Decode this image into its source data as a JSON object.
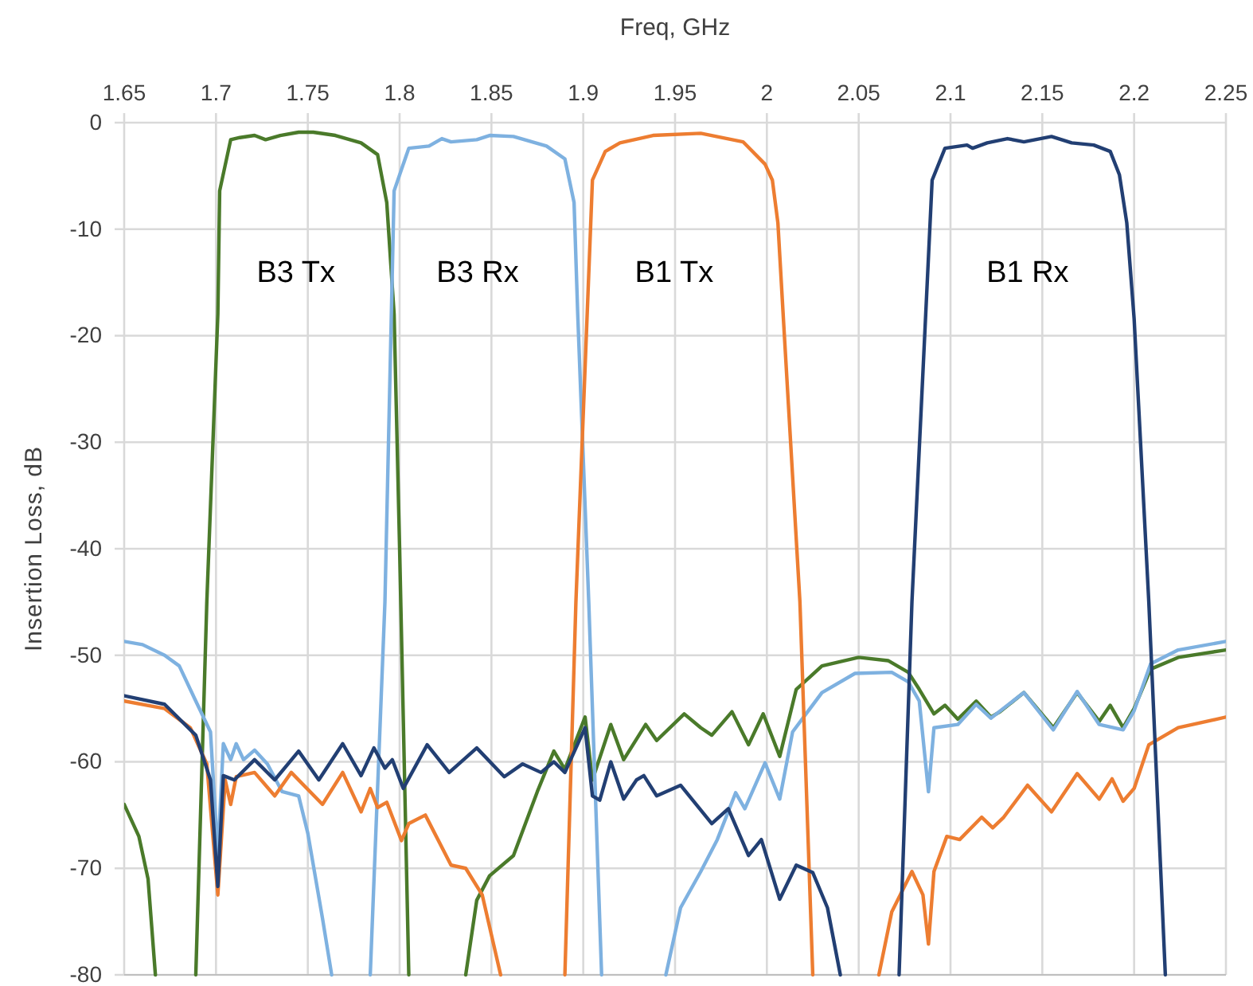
{
  "chart_data": {
    "type": "line",
    "xlabel": "Freq, GHz",
    "ylabel": "Insertion Loss, dB",
    "xlim": [
      1.65,
      2.25
    ],
    "xticks": [
      1.65,
      1.7,
      1.75,
      1.8,
      1.85,
      1.9,
      1.95,
      2,
      2.05,
      2.1,
      2.15,
      2.2,
      2.25
    ],
    "ylim": [
      -80,
      0
    ],
    "yticks": [
      0,
      -10,
      -20,
      -30,
      -40,
      -50,
      -60,
      -70,
      -80
    ],
    "grid": true,
    "line_style": "solid",
    "marker": "none",
    "series": [
      {
        "name": "B3 Tx",
        "color": "#4a7a2a",
        "x": [
          1.65,
          1.658,
          1.663,
          1.667,
          1.678,
          1.689,
          1.695,
          1.701,
          1.702,
          1.708,
          1.713,
          1.721,
          1.727,
          1.735,
          1.745,
          1.753,
          1.765,
          1.779,
          1.788,
          1.793,
          1.797,
          1.8,
          1.805,
          1.82,
          1.836,
          1.842,
          1.849,
          1.862,
          1.875,
          1.884,
          1.89,
          1.901,
          1.905,
          1.915,
          1.922,
          1.934,
          1.94,
          1.955,
          1.964,
          1.97,
          1.981,
          1.99,
          1.998,
          2.007,
          2.016,
          2.03,
          2.05,
          2.066,
          2.077,
          2.083,
          2.091,
          2.097,
          2.104,
          2.114,
          2.122,
          2.127,
          2.14,
          2.156,
          2.169,
          2.181,
          2.187,
          2.194,
          2.2,
          2.209,
          2.224,
          2.25
        ],
        "values": [
          -64,
          -67,
          -71,
          -80,
          null,
          -80,
          -45,
          -18,
          -6.4,
          -1.6,
          -1.4,
          -1.2,
          -1.6,
          -1.2,
          -0.9,
          -0.9,
          -1.2,
          -1.9,
          -3,
          -7.5,
          -18,
          -40,
          -80,
          null,
          -80,
          -73,
          -70.7,
          -68.8,
          -62.8,
          -59,
          -60.7,
          -55.8,
          -61.7,
          -56.5,
          -59.8,
          -56.5,
          -58,
          -55.5,
          -56.8,
          -57.5,
          -55.3,
          -58.4,
          -55.5,
          -59.5,
          -53.2,
          -51,
          -50.2,
          -50.5,
          -51.6,
          -53.2,
          -55.5,
          -54.7,
          -56,
          -54.3,
          -55.8,
          -55.3,
          -53.5,
          -56.8,
          -53.5,
          -56.2,
          -54.7,
          -56.8,
          -55,
          -51.3,
          -50.2,
          -49.5
        ]
      },
      {
        "name": "B3 Rx",
        "color": "#7eb1e0",
        "x": [
          1.65,
          1.66,
          1.672,
          1.68,
          1.689,
          1.697,
          1.701,
          1.704,
          1.708,
          1.711,
          1.715,
          1.721,
          1.728,
          1.736,
          1.745,
          1.75,
          1.758,
          1.763,
          1.774,
          1.784,
          1.792,
          1.797,
          1.805,
          1.816,
          1.823,
          1.828,
          1.842,
          1.849,
          1.862,
          1.88,
          1.89,
          1.895,
          1.897,
          1.903,
          1.91,
          1.928,
          1.945,
          1.953,
          1.964,
          1.973,
          1.983,
          1.988,
          1.999,
          2.007,
          2.014,
          2.03,
          2.048,
          2.068,
          2.077,
          2.083,
          2.088,
          2.091,
          2.104,
          2.114,
          2.122,
          2.14,
          2.156,
          2.169,
          2.181,
          2.194,
          2.2,
          2.209,
          2.224,
          2.25
        ],
        "values": [
          -48.7,
          -49,
          -50,
          -51,
          -54.3,
          -57.2,
          -68.8,
          -58.3,
          -59.8,
          -58.3,
          -59.8,
          -58.9,
          -60.2,
          -62.8,
          -63.2,
          -66.7,
          -74.7,
          -80,
          null,
          -80,
          -45,
          -6.4,
          -2.4,
          -2.2,
          -1.5,
          -1.8,
          -1.6,
          -1.2,
          -1.3,
          -2.2,
          -3.4,
          -7.5,
          -18,
          -45,
          -80,
          null,
          -80,
          -73.7,
          -70.3,
          -67.3,
          -62.9,
          -64.4,
          -60.1,
          -63.5,
          -57.2,
          -53.5,
          -51.7,
          -51.6,
          -52.5,
          -54.3,
          -62.8,
          -56.8,
          -56.5,
          -54.6,
          -55.9,
          -53.5,
          -57,
          -53.4,
          -56.5,
          -57,
          -55.2,
          -50.8,
          -49.5,
          -48.7
        ]
      },
      {
        "name": "B1 Tx",
        "color": "#ed7d31",
        "x": [
          1.65,
          1.672,
          1.686,
          1.695,
          1.701,
          1.705,
          1.708,
          1.711,
          1.721,
          1.732,
          1.741,
          1.758,
          1.769,
          1.779,
          1.784,
          1.788,
          1.793,
          1.801,
          1.805,
          1.814,
          1.828,
          1.836,
          1.845,
          1.855,
          1.872,
          1.89,
          1.896,
          1.905,
          1.912,
          1.92,
          1.938,
          1.964,
          1.987,
          1.999,
          2.003,
          2.006,
          2.009,
          2.018,
          2.025,
          2.043,
          2.061,
          2.068,
          2.079,
          2.085,
          2.088,
          2.091,
          2.098,
          2.105,
          2.117,
          2.123,
          2.129,
          2.142,
          2.155,
          2.169,
          2.181,
          2.188,
          2.194,
          2.2,
          2.208,
          2.224,
          2.25
        ],
        "values": [
          -54.3,
          -55,
          -56.8,
          -60.2,
          -72.5,
          -61.7,
          -64,
          -61.4,
          -61,
          -63.2,
          -61,
          -64,
          -61,
          -64.7,
          -62.5,
          -64.3,
          -63.8,
          -67.4,
          -65.8,
          -65,
          -69.7,
          -70,
          -72.5,
          -80,
          null,
          -80,
          -45,
          -5.4,
          -2.7,
          -1.9,
          -1.2,
          -1,
          -1.8,
          -3.9,
          -5.4,
          -9.4,
          -18.4,
          -45,
          -80,
          null,
          -80,
          -74.1,
          -70.3,
          -72.5,
          -77.1,
          -70.3,
          -67,
          -67.3,
          -65.2,
          -66.2,
          -65.2,
          -62.2,
          -64.7,
          -61.1,
          -63.5,
          -61.6,
          -63.7,
          -62.5,
          -58.4,
          -56.8,
          -55.8
        ]
      },
      {
        "name": "B1 Rx",
        "color": "#223f73",
        "x": [
          1.65,
          1.672,
          1.689,
          1.697,
          1.701,
          1.704,
          1.71,
          1.721,
          1.732,
          1.745,
          1.756,
          1.769,
          1.779,
          1.786,
          1.792,
          1.796,
          1.802,
          1.815,
          1.827,
          1.842,
          1.857,
          1.867,
          1.877,
          1.884,
          1.89,
          1.901,
          1.905,
          1.909,
          1.915,
          1.922,
          1.929,
          1.933,
          1.94,
          1.953,
          1.97,
          1.979,
          1.99,
          1.997,
          2.007,
          2.016,
          2.025,
          2.033,
          2.04,
          2.056,
          2.072,
          2.079,
          2.09,
          2.097,
          2.109,
          2.112,
          2.12,
          2.131,
          2.14,
          2.155,
          2.166,
          2.178,
          2.187,
          2.192,
          2.196,
          2.2,
          2.208,
          2.217
        ],
        "values": [
          -53.8,
          -54.6,
          -57.5,
          -61.7,
          -71.7,
          -61.3,
          -61.7,
          -59.8,
          -61.7,
          -59,
          -61.7,
          -58.3,
          -61.3,
          -58.7,
          -60.6,
          -59.8,
          -62.5,
          -58.4,
          -61,
          -58.7,
          -61.4,
          -60.2,
          -61,
          -60,
          -61,
          -56.8,
          -63.2,
          -63.6,
          -60,
          -63.5,
          -61.7,
          -61.3,
          -63.2,
          -62.2,
          -65.8,
          -64.4,
          -68.8,
          -67.3,
          -72.9,
          -69.7,
          -70.4,
          -73.7,
          -80,
          null,
          -80,
          -45,
          -5.4,
          -2.4,
          -2.1,
          -2.4,
          -1.9,
          -1.5,
          -1.8,
          -1.3,
          -1.9,
          -2.1,
          -2.7,
          -4.9,
          -9.4,
          -18.4,
          -45,
          -80
        ]
      }
    ]
  }
}
